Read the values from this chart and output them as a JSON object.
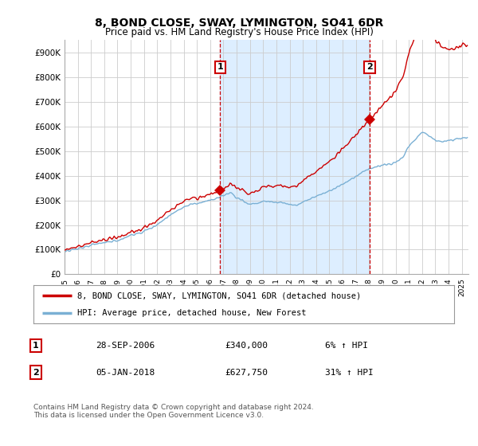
{
  "title": "8, BOND CLOSE, SWAY, LYMINGTON, SO41 6DR",
  "subtitle": "Price paid vs. HM Land Registry's House Price Index (HPI)",
  "ylim": [
    0,
    950000
  ],
  "xlim_start": 1995.0,
  "xlim_end": 2025.5,
  "transaction1": {
    "date": 2006.75,
    "price": 340000,
    "label": "1",
    "date_str": "28-SEP-2006"
  },
  "transaction2": {
    "date": 2018.04,
    "price": 627750,
    "label": "2",
    "date_str": "05-JAN-2018"
  },
  "line_color_red": "#cc0000",
  "line_color_blue": "#7ab0d4",
  "shade_color": "#ddeeff",
  "legend_label_red": "8, BOND CLOSE, SWAY, LYMINGTON, SO41 6DR (detached house)",
  "legend_label_blue": "HPI: Average price, detached house, New Forest",
  "footer": "Contains HM Land Registry data © Crown copyright and database right 2024.\nThis data is licensed under the Open Government Licence v3.0.",
  "table_row1": [
    "1",
    "28-SEP-2006",
    "£340,000",
    "6% ↑ HPI"
  ],
  "table_row2": [
    "2",
    "05-JAN-2018",
    "£627,750",
    "31% ↑ HPI"
  ],
  "background_color": "#ffffff",
  "grid_color": "#cccccc"
}
